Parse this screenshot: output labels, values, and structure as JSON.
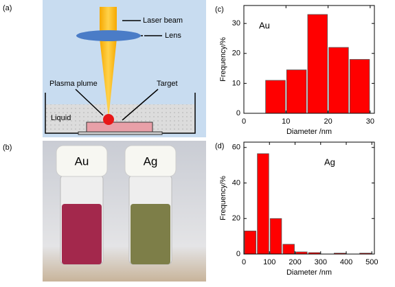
{
  "diagram": {
    "label": "(a)",
    "laser": "Laser beam",
    "lens": "Lens",
    "plume": "Plasma plume",
    "target": "Target",
    "liquid": "Liquid"
  },
  "photo": {
    "label": "(b)",
    "left": "Au",
    "right": "Ag"
  },
  "chart_data": [
    {
      "type": "histogram",
      "label": "(c)",
      "annotation": "Au",
      "xlabel": "Diameter /nm",
      "ylabel": "Frequency/%",
      "bins": [
        5,
        10,
        15,
        20,
        25,
        30
      ],
      "values": [
        11,
        14.5,
        33,
        22,
        18
      ],
      "color": "#ff0000",
      "xlim": [
        0,
        31
      ],
      "xticks": [
        0,
        10,
        20,
        30
      ],
      "ylim": [
        0,
        36
      ],
      "yticks": [
        0,
        10,
        20,
        30
      ]
    },
    {
      "type": "histogram",
      "label": "(d)",
      "annotation": "Ag",
      "xlabel": "Diameter /nm",
      "ylabel": "Frequency/%",
      "bins": [
        0,
        50,
        100,
        150,
        200,
        250,
        300,
        350,
        400,
        450,
        500
      ],
      "values": [
        13,
        56.5,
        20,
        5.5,
        1.2,
        0.8,
        0,
        0.5,
        0,
        0.5
      ],
      "color": "#ff0000",
      "xlim": [
        0,
        510
      ],
      "xticks": [
        0,
        100,
        200,
        300,
        400,
        500
      ],
      "ylim": [
        0,
        63
      ],
      "yticks": [
        0,
        20,
        40,
        60
      ]
    }
  ]
}
